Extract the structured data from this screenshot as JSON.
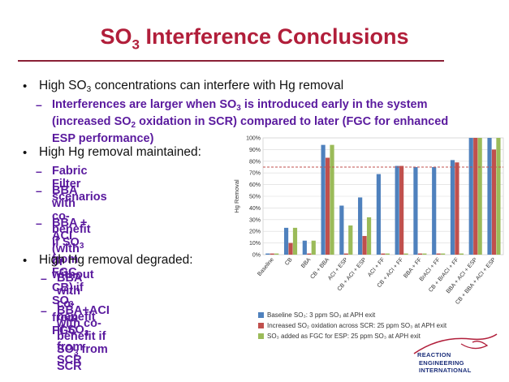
{
  "slide": {
    "title_main": "SO",
    "title_sub": "3",
    "title_rest": " Interference Conclusions"
  },
  "bullets": {
    "b1_a": "High SO",
    "b1_sub": "3",
    "b1_b": " concentrations can interfere with Hg removal",
    "b1_1_l1a": "Interferences are larger when SO",
    "b1_1_l1sub": "3",
    "b1_1_l1b": " is introduced early in the system",
    "b1_1_l2a": "(increased SO",
    "b1_1_l2sub": "2",
    "b1_1_l2b": " oxidation in SCR) compared to later (FGC for enhanced",
    "b1_1_l3": "ESP performance)",
    "b2": "High Hg removal maintained:",
    "b2_1": "Fabric Filter scenarios",
    "b2_2_l1a": "BBA with co-benefit if SO",
    "b2_2_l1sub": "3",
    "b2_2_l2": "from FGC",
    "b2_3_l1": "BBA + ACI (with or without",
    "b2_3_l2a": "CB) if SO",
    "b2_3_l2sub": "3",
    "b2_3_l2b": " from FGC",
    "b3": "High Hg removal degraded:",
    "b3_1_l1a": "BBA with co-benefit if SO",
    "b3_1_l1sub": "3",
    "b3_1_l2": "from SCR",
    "b3_2_l1": "BBA+ACI with co-benefit if",
    "b3_2_l2a": "SO",
    "b3_2_l2sub": "3",
    "b3_2_l2b": " from SCR"
  },
  "legend": {
    "item1": "Baseline SO₃: 3 ppm SO₃ at APH exit",
    "item2": "Increased SO₂ oxidation across SCR: 25 ppm SO₃ at APH exit",
    "item3": "SO₃ added as FGC for ESP: 25 ppm SO₃ at APH exit"
  },
  "logo": {
    "line1": "REACTION",
    "line2": "ENGINEERING",
    "line3": "INTERNATIONAL"
  },
  "colors": {
    "title": "#b11e3a",
    "sub_bullet": "#5a1a9e",
    "series1": "#4f81bd",
    "series2": "#c0504d",
    "series3": "#9bbb59",
    "reference_line": "#c0504d"
  },
  "chart_data": {
    "type": "bar",
    "ylabel": "Hg Removal",
    "xlabel": "",
    "ylim": [
      0,
      100
    ],
    "yticks": [
      "0%",
      "10%",
      "20%",
      "30%",
      "40%",
      "50%",
      "60%",
      "70%",
      "80%",
      "90%",
      "100%"
    ],
    "grid": true,
    "legend_position": "bottom",
    "reference_line": 75,
    "categories": [
      "Baseline",
      "CB",
      "BBA",
      "CB + BBA",
      "ACI + ESP",
      "CB + ACI + ESP",
      "ACI + FF",
      "CB + ACI + FF",
      "BBA + FF",
      "BrACI + FF",
      "CB + BrACI + FF",
      "BBA + ACI + ESP",
      "CB + BBA + ACI + ESP"
    ],
    "series": [
      {
        "name": "Baseline SO₃: 3 ppm SO₃ at APH exit",
        "values": [
          1,
          23,
          12,
          94,
          42,
          49,
          69,
          76,
          75,
          75,
          81,
          100,
          100
        ]
      },
      {
        "name": "Increased SO₂ oxidation across SCR: 25 ppm SO₃ at APH exit",
        "values": [
          1,
          10,
          1,
          83,
          1,
          16,
          1,
          76,
          1,
          1,
          79,
          100,
          90
        ]
      },
      {
        "name": "SO₃ added as FGC for ESP: 25 ppm SO₃ at APH exit",
        "values": [
          1,
          23,
          12,
          94,
          25,
          32,
          1,
          1,
          1,
          1,
          1,
          100,
          100
        ]
      }
    ]
  }
}
